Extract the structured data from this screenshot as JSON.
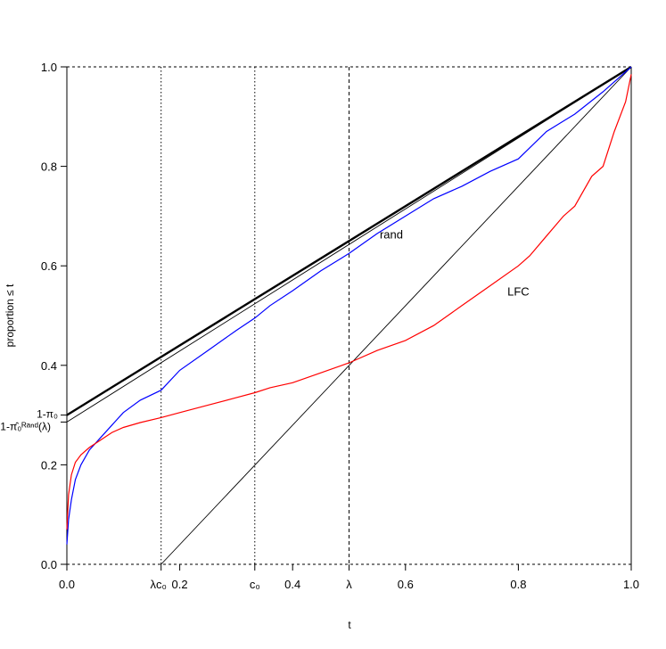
{
  "chart_data": {
    "type": "line",
    "xlabel": "t",
    "ylabel": "proportion ≤ t",
    "xlim": [
      0,
      1
    ],
    "ylim": [
      0,
      1
    ],
    "x_ticks": [
      {
        "value": 0.0,
        "label": "0.0"
      },
      {
        "value": 0.2,
        "label": "0.2"
      },
      {
        "value": 0.4,
        "label": "0.4"
      },
      {
        "value": 0.6,
        "label": "0.6"
      },
      {
        "value": 0.8,
        "label": "0.8"
      },
      {
        "value": 1.0,
        "label": "1.0"
      }
    ],
    "y_ticks": [
      {
        "value": 0.0,
        "label": "0.0"
      },
      {
        "value": 0.2,
        "label": "0.2"
      },
      {
        "value": 0.4,
        "label": "0.4"
      },
      {
        "value": 0.6,
        "label": "0.6"
      },
      {
        "value": 0.8,
        "label": "0.8"
      },
      {
        "value": 1.0,
        "label": "1.0"
      }
    ],
    "special_x_ticks": [
      {
        "value": 0.167,
        "label": "λc₀"
      },
      {
        "value": 0.333,
        "label": "c₀"
      },
      {
        "value": 0.5,
        "label": "λ"
      }
    ],
    "vertical_lines": [
      {
        "x": 0.167,
        "style": "dotted"
      },
      {
        "x": 0.333,
        "style": "dotted"
      },
      {
        "x": 0.5,
        "style": "dashed"
      }
    ],
    "y_intercept_labels": [
      {
        "value": 0.3,
        "label": "1-π₀"
      },
      {
        "value": 0.286,
        "label": "1-π̂₀ᴿᵃⁿᵈ(λ)"
      }
    ],
    "series": [
      {
        "color": "#000000",
        "style": "thick",
        "x": [
          0,
          1
        ],
        "y": [
          0.3,
          1.0
        ]
      },
      {
        "color": "#000000",
        "style": "thin",
        "x": [
          0,
          1
        ],
        "y": [
          0.286,
          1.0
        ]
      },
      {
        "color": "#000000",
        "style": "thin",
        "x": [
          0.167,
          1
        ],
        "y": [
          0,
          1
        ]
      },
      {
        "name": "rand",
        "color": "#0000ff",
        "x": [
          0,
          0.003,
          0.008,
          0.015,
          0.025,
          0.04,
          0.06,
          0.08,
          0.1,
          0.13,
          0.167,
          0.2,
          0.25,
          0.3,
          0.333,
          0.36,
          0.4,
          0.45,
          0.5,
          0.55,
          0.6,
          0.65,
          0.7,
          0.75,
          0.8,
          0.85,
          0.9,
          0.95,
          1.0
        ],
        "y": [
          0.04,
          0.09,
          0.13,
          0.17,
          0.2,
          0.23,
          0.255,
          0.28,
          0.305,
          0.33,
          0.35,
          0.39,
          0.43,
          0.47,
          0.495,
          0.52,
          0.55,
          0.59,
          0.625,
          0.665,
          0.7,
          0.735,
          0.76,
          0.79,
          0.815,
          0.87,
          0.905,
          0.95,
          1.0
        ]
      },
      {
        "name": "LFC",
        "color": "#ff0000",
        "x": [
          0,
          0.003,
          0.008,
          0.015,
          0.025,
          0.04,
          0.06,
          0.08,
          0.1,
          0.13,
          0.167,
          0.2,
          0.25,
          0.3,
          0.333,
          0.36,
          0.4,
          0.45,
          0.5,
          0.55,
          0.6,
          0.65,
          0.7,
          0.75,
          0.8,
          0.82,
          0.85,
          0.88,
          0.9,
          0.93,
          0.95,
          0.97,
          0.99,
          1.0
        ],
        "y": [
          0.07,
          0.14,
          0.18,
          0.205,
          0.22,
          0.235,
          0.25,
          0.265,
          0.275,
          0.285,
          0.295,
          0.305,
          0.32,
          0.335,
          0.345,
          0.355,
          0.365,
          0.385,
          0.405,
          0.43,
          0.45,
          0.48,
          0.52,
          0.56,
          0.6,
          0.62,
          0.66,
          0.7,
          0.72,
          0.78,
          0.8,
          0.87,
          0.93,
          0.985
        ]
      }
    ],
    "annotations": [
      {
        "text": "rand",
        "x": 0.575,
        "y": 0.655
      },
      {
        "text": "LFC",
        "x": 0.8,
        "y": 0.54
      }
    ],
    "grid": false,
    "box": "dashed"
  }
}
